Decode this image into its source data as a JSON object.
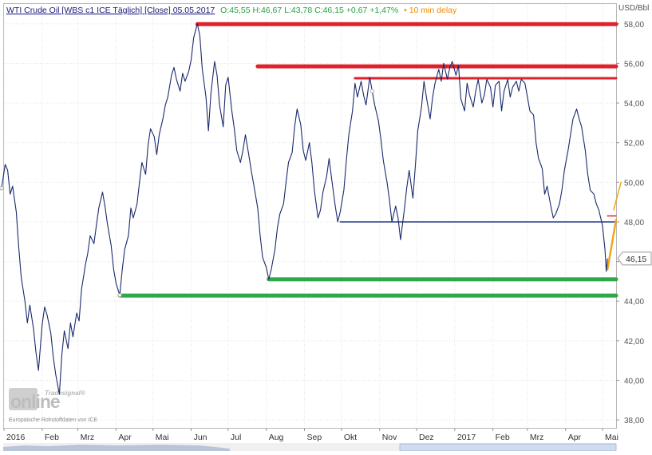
{
  "header": {
    "instrument": "WTI Crude Oil [WBS c1 ICE Täglich] [Close] 05.05.2017",
    "ohlc": "O:45,55 H:46,67 L:43,78 C:46,15 +0,67 +1,47%",
    "delay": "• 10 min delay"
  },
  "axis": {
    "unit": "USD/Bbl",
    "last_value_label": "46,15"
  },
  "watermark": {
    "brand_small": "Tradesignal®",
    "brand_big": "online",
    "source": "Europäische Rohstoffdaten von ICE"
  },
  "colors": {
    "price_line": "#1a2a6c",
    "resistance": "#e0202a",
    "support": "#2ea84a",
    "midline": "#233a8a",
    "trend": "#f2a51f",
    "header_green": "#27a245",
    "header_orange": "#f08a00",
    "axis_text": "#555555"
  },
  "chart_data": {
    "type": "line",
    "title": "WTI Crude Oil [WBS c1 ICE Täglich] [Close] 05.05.2017",
    "ylabel": "USD/Bbl",
    "xlim": [
      "2016-01-01",
      "2017-05-12"
    ],
    "ylim": [
      37.6,
      59.0
    ],
    "y_ticks": [
      38,
      40,
      42,
      44,
      46,
      48,
      50,
      52,
      54,
      56,
      58
    ],
    "y_tick_labels": [
      "38,00",
      "40,00",
      "42,00",
      "44,00",
      "46,00",
      "48,00",
      "50,00",
      "52,00",
      "54,00",
      "56,00",
      "58,00"
    ],
    "x_ticks": [
      {
        "date": "2016-01-01",
        "label": "2016"
      },
      {
        "date": "2016-02-01",
        "label": "Feb"
      },
      {
        "date": "2016-03-01",
        "label": "Mrz"
      },
      {
        "date": "2016-04-01",
        "label": "Apr"
      },
      {
        "date": "2016-05-01",
        "label": "Mai"
      },
      {
        "date": "2016-06-01",
        "label": "Jun"
      },
      {
        "date": "2016-07-01",
        "label": "Jul"
      },
      {
        "date": "2016-08-01",
        "label": "Aug"
      },
      {
        "date": "2016-09-01",
        "label": "Sep"
      },
      {
        "date": "2016-10-01",
        "label": "Okt"
      },
      {
        "date": "2016-11-01",
        "label": "Nov"
      },
      {
        "date": "2016-12-01",
        "label": "Dez"
      },
      {
        "date": "2017-01-01",
        "label": "2017"
      },
      {
        "date": "2017-02-01",
        "label": "Feb"
      },
      {
        "date": "2017-03-01",
        "label": "Mrz"
      },
      {
        "date": "2017-04-01",
        "label": "Apr"
      },
      {
        "date": "2017-05-01",
        "label": "Mai"
      }
    ],
    "grid": true,
    "last_value": 46.15,
    "series": [
      {
        "points": [
          [
            "2015-12-30",
            49.7
          ],
          [
            "2016-01-02",
            50.9
          ],
          [
            "2016-01-04",
            50.6
          ],
          [
            "2016-01-06",
            49.4
          ],
          [
            "2016-01-08",
            49.8
          ],
          [
            "2016-01-11",
            48.5
          ],
          [
            "2016-01-13",
            46.7
          ],
          [
            "2016-01-15",
            45.2
          ],
          [
            "2016-01-18",
            44.0
          ],
          [
            "2016-01-20",
            42.9
          ],
          [
            "2016-01-22",
            43.8
          ],
          [
            "2016-01-25",
            42.6
          ],
          [
            "2016-01-27",
            41.4
          ],
          [
            "2016-01-29",
            40.5
          ],
          [
            "2016-02-01",
            42.8
          ],
          [
            "2016-02-03",
            43.7
          ],
          [
            "2016-02-05",
            43.3
          ],
          [
            "2016-02-08",
            42.4
          ],
          [
            "2016-02-10",
            41.2
          ],
          [
            "2016-02-12",
            40.3
          ],
          [
            "2016-02-15",
            39.3
          ],
          [
            "2016-02-17",
            41.3
          ],
          [
            "2016-02-19",
            42.5
          ],
          [
            "2016-02-22",
            41.6
          ],
          [
            "2016-02-24",
            42.9
          ],
          [
            "2016-02-26",
            42.2
          ],
          [
            "2016-02-29",
            43.4
          ],
          [
            "2016-03-02",
            43.0
          ],
          [
            "2016-03-04",
            44.6
          ],
          [
            "2016-03-07",
            45.8
          ],
          [
            "2016-03-09",
            46.4
          ],
          [
            "2016-03-11",
            47.3
          ],
          [
            "2016-03-14",
            46.9
          ],
          [
            "2016-03-16",
            47.8
          ],
          [
            "2016-03-18",
            48.7
          ],
          [
            "2016-03-21",
            49.5
          ],
          [
            "2016-03-23",
            48.8
          ],
          [
            "2016-03-25",
            47.9
          ],
          [
            "2016-03-28",
            46.8
          ],
          [
            "2016-03-30",
            45.6
          ],
          [
            "2016-04-01",
            44.9
          ],
          [
            "2016-04-04",
            44.3
          ],
          [
            "2016-04-06",
            45.6
          ],
          [
            "2016-04-08",
            46.6
          ],
          [
            "2016-04-11",
            47.3
          ],
          [
            "2016-04-13",
            48.7
          ],
          [
            "2016-04-15",
            48.2
          ],
          [
            "2016-04-18",
            48.9
          ],
          [
            "2016-04-20",
            50.0
          ],
          [
            "2016-04-22",
            51.0
          ],
          [
            "2016-04-25",
            50.4
          ],
          [
            "2016-04-27",
            51.9
          ],
          [
            "2016-04-29",
            52.7
          ],
          [
            "2016-05-02",
            52.3
          ],
          [
            "2016-05-04",
            51.4
          ],
          [
            "2016-05-06",
            52.4
          ],
          [
            "2016-05-09",
            53.2
          ],
          [
            "2016-05-11",
            53.9
          ],
          [
            "2016-05-13",
            54.3
          ],
          [
            "2016-05-16",
            55.4
          ],
          [
            "2016-05-18",
            55.8
          ],
          [
            "2016-05-20",
            55.2
          ],
          [
            "2016-05-23",
            54.6
          ],
          [
            "2016-05-25",
            55.5
          ],
          [
            "2016-05-27",
            55.1
          ],
          [
            "2016-05-30",
            55.6
          ],
          [
            "2016-06-01",
            56.2
          ],
          [
            "2016-06-03",
            57.3
          ],
          [
            "2016-06-06",
            58.0
          ],
          [
            "2016-06-08",
            57.4
          ],
          [
            "2016-06-10",
            55.7
          ],
          [
            "2016-06-13",
            54.3
          ],
          [
            "2016-06-15",
            52.6
          ],
          [
            "2016-06-17",
            54.5
          ],
          [
            "2016-06-20",
            56.1
          ],
          [
            "2016-06-22",
            55.4
          ],
          [
            "2016-06-24",
            53.9
          ],
          [
            "2016-06-27",
            52.8
          ],
          [
            "2016-06-29",
            54.9
          ],
          [
            "2016-07-01",
            55.3
          ],
          [
            "2016-07-04",
            53.6
          ],
          [
            "2016-07-06",
            52.7
          ],
          [
            "2016-07-08",
            51.6
          ],
          [
            "2016-07-11",
            51.0
          ],
          [
            "2016-07-13",
            51.6
          ],
          [
            "2016-07-15",
            52.4
          ],
          [
            "2016-07-18",
            51.3
          ],
          [
            "2016-07-20",
            50.5
          ],
          [
            "2016-07-22",
            49.8
          ],
          [
            "2016-07-25",
            48.7
          ],
          [
            "2016-07-27",
            47.3
          ],
          [
            "2016-07-29",
            46.2
          ],
          [
            "2016-08-01",
            45.7
          ],
          [
            "2016-08-03",
            45.1
          ],
          [
            "2016-08-05",
            45.6
          ],
          [
            "2016-08-08",
            46.6
          ],
          [
            "2016-08-10",
            47.7
          ],
          [
            "2016-08-12",
            48.4
          ],
          [
            "2016-08-15",
            48.9
          ],
          [
            "2016-08-17",
            50.0
          ],
          [
            "2016-08-19",
            51.0
          ],
          [
            "2016-08-22",
            51.5
          ],
          [
            "2016-08-24",
            52.8
          ],
          [
            "2016-08-26",
            53.7
          ],
          [
            "2016-08-29",
            52.9
          ],
          [
            "2016-08-31",
            51.6
          ],
          [
            "2016-09-02",
            51.1
          ],
          [
            "2016-09-05",
            52.0
          ],
          [
            "2016-09-07",
            51.0
          ],
          [
            "2016-09-09",
            49.6
          ],
          [
            "2016-09-12",
            48.2
          ],
          [
            "2016-09-14",
            48.6
          ],
          [
            "2016-09-16",
            49.5
          ],
          [
            "2016-09-19",
            50.3
          ],
          [
            "2016-09-21",
            51.2
          ],
          [
            "2016-09-23",
            50.2
          ],
          [
            "2016-09-26",
            48.8
          ],
          [
            "2016-09-28",
            48.0
          ],
          [
            "2016-09-30",
            48.5
          ],
          [
            "2016-10-03",
            49.6
          ],
          [
            "2016-10-05",
            51.1
          ],
          [
            "2016-10-07",
            52.4
          ],
          [
            "2016-10-10",
            53.6
          ],
          [
            "2016-10-12",
            55.0
          ],
          [
            "2016-10-14",
            54.3
          ],
          [
            "2016-10-17",
            55.1
          ],
          [
            "2016-10-19",
            54.4
          ],
          [
            "2016-10-21",
            53.9
          ],
          [
            "2016-10-24",
            55.3
          ],
          [
            "2016-10-26",
            54.6
          ],
          [
            "2016-10-28",
            53.9
          ],
          [
            "2016-10-31",
            53.1
          ],
          [
            "2016-11-02",
            52.2
          ],
          [
            "2016-11-04",
            51.1
          ],
          [
            "2016-11-07",
            50.0
          ],
          [
            "2016-11-09",
            49.1
          ],
          [
            "2016-11-11",
            48.0
          ],
          [
            "2016-11-14",
            48.8
          ],
          [
            "2016-11-16",
            48.2
          ],
          [
            "2016-11-18",
            47.1
          ],
          [
            "2016-11-21",
            48.6
          ],
          [
            "2016-11-23",
            49.7
          ],
          [
            "2016-11-25",
            50.6
          ],
          [
            "2016-11-28",
            49.2
          ],
          [
            "2016-11-30",
            50.8
          ],
          [
            "2016-12-02",
            52.6
          ],
          [
            "2016-12-05",
            53.8
          ],
          [
            "2016-12-07",
            55.1
          ],
          [
            "2016-12-09",
            54.3
          ],
          [
            "2016-12-12",
            53.2
          ],
          [
            "2016-12-14",
            54.3
          ],
          [
            "2016-12-16",
            55.0
          ],
          [
            "2016-12-19",
            55.7
          ],
          [
            "2016-12-21",
            55.1
          ],
          [
            "2016-12-23",
            56.0
          ],
          [
            "2016-12-26",
            55.2
          ],
          [
            "2016-12-28",
            55.8
          ],
          [
            "2016-12-30",
            56.1
          ],
          [
            "2017-01-02",
            55.4
          ],
          [
            "2017-01-04",
            55.9
          ],
          [
            "2017-01-06",
            54.2
          ],
          [
            "2017-01-09",
            53.6
          ],
          [
            "2017-01-11",
            55.0
          ],
          [
            "2017-01-13",
            54.4
          ],
          [
            "2017-01-16",
            53.8
          ],
          [
            "2017-01-18",
            54.6
          ],
          [
            "2017-01-20",
            55.2
          ],
          [
            "2017-01-23",
            54.0
          ],
          [
            "2017-01-25",
            54.4
          ],
          [
            "2017-01-27",
            55.2
          ],
          [
            "2017-01-30",
            54.8
          ],
          [
            "2017-02-01",
            53.8
          ],
          [
            "2017-02-03",
            54.9
          ],
          [
            "2017-02-06",
            55.1
          ],
          [
            "2017-02-08",
            53.6
          ],
          [
            "2017-02-10",
            54.6
          ],
          [
            "2017-02-13",
            55.2
          ],
          [
            "2017-02-15",
            54.3
          ],
          [
            "2017-02-17",
            54.8
          ],
          [
            "2017-02-20",
            55.1
          ],
          [
            "2017-02-22",
            54.6
          ],
          [
            "2017-02-24",
            55.2
          ],
          [
            "2017-02-27",
            55.0
          ],
          [
            "2017-03-01",
            54.3
          ],
          [
            "2017-03-03",
            53.6
          ],
          [
            "2017-03-06",
            53.4
          ],
          [
            "2017-03-08",
            52.0
          ],
          [
            "2017-03-10",
            51.2
          ],
          [
            "2017-03-13",
            50.7
          ],
          [
            "2017-03-15",
            49.4
          ],
          [
            "2017-03-17",
            49.8
          ],
          [
            "2017-03-20",
            48.8
          ],
          [
            "2017-03-22",
            48.2
          ],
          [
            "2017-03-24",
            48.4
          ],
          [
            "2017-03-27",
            48.9
          ],
          [
            "2017-03-29",
            49.6
          ],
          [
            "2017-03-31",
            50.6
          ],
          [
            "2017-04-03",
            51.6
          ],
          [
            "2017-04-05",
            52.4
          ],
          [
            "2017-04-07",
            53.2
          ],
          [
            "2017-04-10",
            53.7
          ],
          [
            "2017-04-12",
            53.2
          ],
          [
            "2017-04-14",
            52.8
          ],
          [
            "2017-04-17",
            51.6
          ],
          [
            "2017-04-19",
            50.4
          ],
          [
            "2017-04-21",
            49.6
          ],
          [
            "2017-04-24",
            49.4
          ],
          [
            "2017-04-26",
            48.9
          ],
          [
            "2017-04-28",
            48.6
          ],
          [
            "2017-05-01",
            47.8
          ],
          [
            "2017-05-03",
            46.6
          ],
          [
            "2017-05-04",
            45.5
          ],
          [
            "2017-05-05",
            46.15
          ]
        ]
      }
    ],
    "annotations": [
      {
        "kind": "hline",
        "color": "resistance",
        "y": 57.98,
        "from": "2016-06-06",
        "to": "2017-05-12",
        "width": 5
      },
      {
        "kind": "hline",
        "color": "resistance",
        "y": 55.85,
        "from": "2016-07-25",
        "to": "2017-05-12",
        "width": 5
      },
      {
        "kind": "hline",
        "color": "resistance",
        "y": 55.25,
        "from": "2016-10-12",
        "to": "2017-05-12",
        "width": 3
      },
      {
        "kind": "hline",
        "color": "midline",
        "y": 48.0,
        "from": "2016-09-30",
        "to": "2017-05-12",
        "width": 1.5
      },
      {
        "kind": "hline",
        "color": "support",
        "y": 45.1,
        "from": "2016-08-03",
        "to": "2017-05-12",
        "width": 5
      },
      {
        "kind": "hline",
        "color": "support",
        "y": 44.28,
        "from": "2016-04-04",
        "to": "2017-05-12",
        "width": 5
      },
      {
        "kind": "hline",
        "color": "resistance",
        "y": 48.3,
        "from": "2017-05-05",
        "to": "2017-05-12",
        "width": 1.5
      },
      {
        "kind": "segment",
        "color": "trend",
        "x1": "2017-05-05",
        "y1": 45.6,
        "x2": "2017-05-12",
        "y2": 48.1,
        "width": 2.5
      },
      {
        "kind": "segment",
        "color": "trend",
        "x1": "2017-05-10",
        "y1": 48.6,
        "x2": "2017-05-16",
        "y2": 50.0,
        "width": 1.5
      }
    ]
  }
}
